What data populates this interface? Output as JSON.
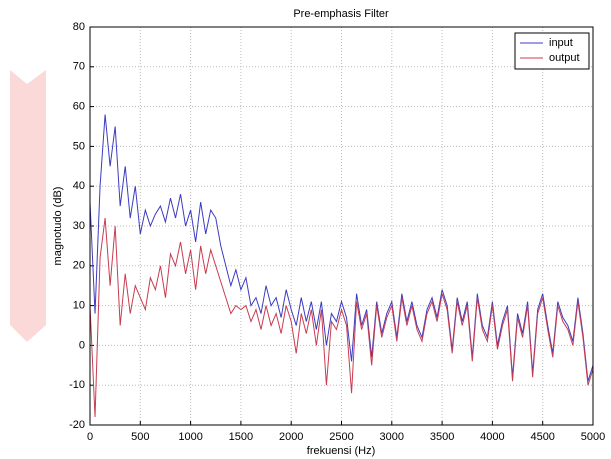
{
  "chart_data": {
    "type": "line",
    "title": "Pre-emphasis Filter",
    "x_label": "frekuensi (Hz)",
    "y_label": "magnotudo (dB)",
    "x": [
      0,
      50,
      100,
      150,
      200,
      250,
      300,
      350,
      400,
      450,
      500,
      550,
      600,
      650,
      700,
      750,
      800,
      850,
      900,
      950,
      1000,
      1050,
      1100,
      1150,
      1200,
      1250,
      1300,
      1350,
      1400,
      1450,
      1500,
      1550,
      1600,
      1650,
      1700,
      1750,
      1800,
      1850,
      1900,
      1950,
      2000,
      2050,
      2100,
      2150,
      2200,
      2250,
      2300,
      2350,
      2400,
      2450,
      2500,
      2550,
      2600,
      2650,
      2700,
      2750,
      2800,
      2850,
      2900,
      2950,
      3000,
      3050,
      3100,
      3150,
      3200,
      3250,
      3300,
      3350,
      3400,
      3450,
      3500,
      3550,
      3600,
      3650,
      3700,
      3750,
      3800,
      3850,
      3900,
      3950,
      4000,
      4050,
      4100,
      4150,
      4200,
      4250,
      4300,
      4350,
      4400,
      4450,
      4500,
      4550,
      4600,
      4650,
      4700,
      4750,
      4800,
      4850,
      4900,
      4950,
      5000
    ],
    "series": [
      {
        "name": "input",
        "color": "#3c3cc0",
        "values": [
          36,
          8,
          40,
          58,
          45,
          55,
          35,
          45,
          32,
          40,
          28,
          34,
          30,
          33,
          35,
          31,
          37,
          32,
          38,
          30,
          34,
          26,
          36,
          28,
          34,
          32,
          25,
          20,
          15,
          19,
          14,
          17,
          10,
          12,
          8,
          15,
          10,
          12,
          7,
          14,
          9,
          5,
          12,
          6,
          11,
          4,
          11,
          0,
          8,
          6,
          11,
          7,
          -4,
          13,
          5,
          9,
          -3,
          11,
          3,
          8,
          11,
          2,
          13,
          6,
          11,
          5,
          2,
          9,
          12,
          7,
          14,
          10,
          -1,
          12,
          6,
          11,
          -3,
          13,
          5,
          2,
          11,
          0,
          6,
          10,
          -8,
          8,
          3,
          11,
          -7,
          9,
          13,
          5,
          -2,
          11,
          7,
          5,
          1,
          12,
          3,
          -9,
          -5
        ]
      },
      {
        "name": "output",
        "color": "#c83c50",
        "values": [
          10,
          -18,
          22,
          32,
          15,
          30,
          5,
          18,
          8,
          15,
          12,
          9,
          17,
          14,
          20,
          12,
          23,
          20,
          26,
          18,
          24,
          14,
          25,
          18,
          24,
          20,
          16,
          12,
          8,
          10,
          9,
          10,
          6,
          9,
          4,
          10,
          5,
          8,
          3,
          10,
          6,
          -2,
          8,
          3,
          9,
          0,
          9,
          -10,
          6,
          4,
          9,
          5,
          -12,
          11,
          4,
          8,
          -5,
          10,
          2,
          7,
          10,
          1,
          12,
          5,
          10,
          4,
          1,
          8,
          11,
          6,
          13,
          9,
          -2,
          11,
          5,
          10,
          -4,
          12,
          4,
          1,
          10,
          -1,
          5,
          9,
          -9,
          7,
          2,
          10,
          -8,
          8,
          12,
          4,
          -3,
          10,
          6,
          4,
          0,
          11,
          2,
          -10,
          -6
        ]
      }
    ],
    "xlim": [
      0,
      5000
    ],
    "xticks": [
      0,
      500,
      1000,
      1500,
      2000,
      2500,
      3000,
      3500,
      4000,
      4500,
      5000
    ],
    "ylim": [
      -20,
      80
    ],
    "yticks": [
      -20,
      -10,
      0,
      10,
      20,
      30,
      40,
      50,
      60,
      70,
      80
    ],
    "grid": true,
    "legend": "top-right"
  }
}
